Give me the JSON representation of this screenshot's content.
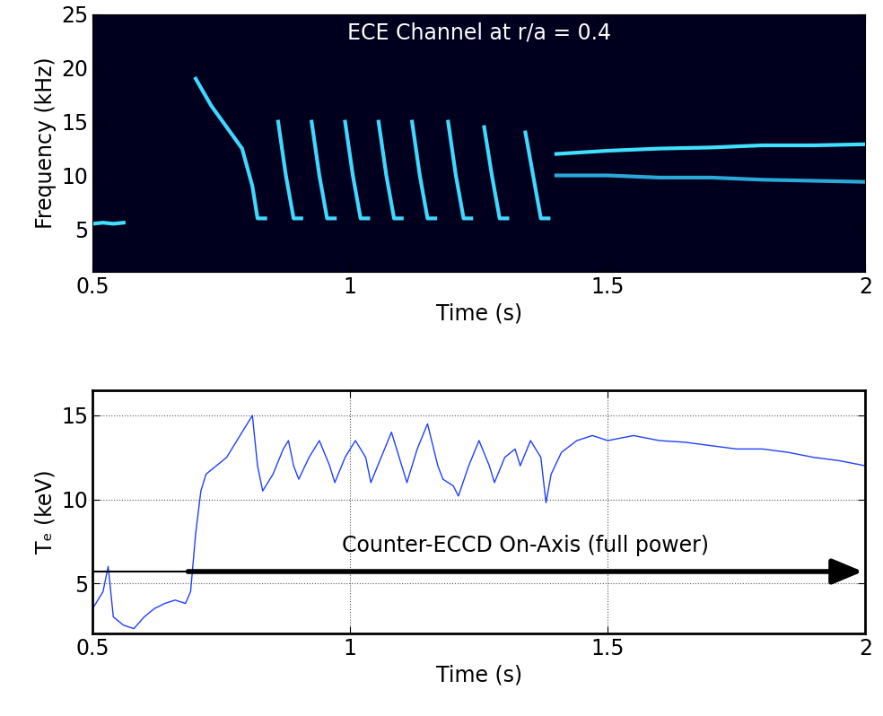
{
  "chart_data": [
    {
      "type": "line",
      "annotations": [
        {
          "text": "ECE Channel at r/a = 0.4"
        }
      ],
      "x_label": "Time (s)",
      "y_label": "Frequency (kHz)",
      "xlim": [
        0.5,
        2
      ],
      "xticks": [
        0.5,
        1,
        1.5,
        2
      ],
      "ylim": [
        1,
        25
      ],
      "yticks": [
        5,
        10,
        15,
        20,
        25
      ],
      "grid": false,
      "series": [
        {
          "color": "#40e0ff",
          "x": [
            0.5,
            0.52,
            0.54,
            0.56
          ],
          "values": [
            5.5,
            5.6,
            5.5,
            5.6
          ]
        },
        {
          "color": "#40d8ff",
          "x": [
            0.7,
            0.73,
            0.76,
            0.79,
            0.81,
            0.82,
            0.835,
            0.84,
            0.86,
            0.875,
            0.89,
            0.905,
            0.91,
            0.925,
            0.94,
            0.955,
            0.97,
            0.975,
            0.99,
            1.005,
            1.02,
            1.035,
            1.04,
            1.055,
            1.07,
            1.085,
            1.1,
            1.105,
            1.12,
            1.135,
            1.15,
            1.165,
            1.17,
            1.19,
            1.205,
            1.22,
            1.235,
            1.24,
            1.26,
            1.275,
            1.29,
            1.305,
            1.31,
            1.34,
            1.355,
            1.37,
            1.385
          ],
          "values": [
            19,
            16.5,
            14.5,
            12.5,
            9,
            6,
            6,
            null,
            15,
            10,
            6,
            6,
            null,
            15,
            10,
            6,
            6,
            null,
            15,
            10,
            6,
            6,
            null,
            15,
            10,
            6,
            6,
            null,
            15,
            10,
            6,
            6,
            null,
            15,
            10,
            6,
            6,
            null,
            14.5,
            10,
            6,
            6,
            null,
            14,
            10,
            6,
            6
          ]
        },
        {
          "color": "#40e0ff",
          "x": [
            1.4,
            1.5,
            1.6,
            1.7,
            1.8,
            1.9,
            2.0
          ],
          "values": [
            12.0,
            12.3,
            12.5,
            12.6,
            12.8,
            12.8,
            12.9
          ]
        },
        {
          "color": "#2aa8d8",
          "x": [
            1.4,
            1.5,
            1.6,
            1.7,
            1.8,
            1.9,
            2.0
          ],
          "values": [
            10.0,
            10.0,
            9.8,
            9.8,
            9.6,
            9.5,
            9.4
          ]
        }
      ]
    },
    {
      "type": "line",
      "annotations": [
        {
          "text": "Counter-ECCD On-Axis (full power)",
          "arrow": {
            "x": [
              0.68,
              2.0
            ],
            "y": 5.7
          }
        }
      ],
      "x_label": "Time (s)",
      "y_label": "Tₑ (keV)",
      "xlim": [
        0.5,
        2
      ],
      "xticks": [
        0.5,
        1,
        1.5,
        2
      ],
      "ylim": [
        2,
        16.5
      ],
      "yticks": [
        5,
        10,
        15
      ],
      "grid": true,
      "series": [
        {
          "color": "#1f3fff",
          "x": [
            0.5,
            0.52,
            0.53,
            0.54,
            0.56,
            0.58,
            0.6,
            0.62,
            0.64,
            0.66,
            0.68,
            0.69,
            0.7,
            0.71,
            0.72,
            0.74,
            0.76,
            0.78,
            0.8,
            0.81,
            0.82,
            0.83,
            0.85,
            0.87,
            0.88,
            0.89,
            0.9,
            0.92,
            0.94,
            0.96,
            0.97,
            0.99,
            1.01,
            1.03,
            1.04,
            1.06,
            1.08,
            1.1,
            1.11,
            1.13,
            1.15,
            1.17,
            1.18,
            1.2,
            1.21,
            1.23,
            1.25,
            1.27,
            1.28,
            1.3,
            1.32,
            1.33,
            1.35,
            1.37,
            1.38,
            1.39,
            1.41,
            1.44,
            1.47,
            1.5,
            1.55,
            1.6,
            1.65,
            1.7,
            1.75,
            1.8,
            1.85,
            1.9,
            1.95,
            2.0
          ],
          "values": [
            3.5,
            4.5,
            6.0,
            3.0,
            2.5,
            2.3,
            3.0,
            3.5,
            3.8,
            4.0,
            3.8,
            4.5,
            8.0,
            10.5,
            11.5,
            12.0,
            12.5,
            13.5,
            14.5,
            15.0,
            12.0,
            10.5,
            11.5,
            13.0,
            13.5,
            12.0,
            11.2,
            12.5,
            13.5,
            12.0,
            11.0,
            12.5,
            13.5,
            12.5,
            11.0,
            12.5,
            14.0,
            12.0,
            11.0,
            13.0,
            14.5,
            12.0,
            11.2,
            10.8,
            10.2,
            12.0,
            13.5,
            12.0,
            11.0,
            12.5,
            13.0,
            12.0,
            13.5,
            12.5,
            9.8,
            11.5,
            12.8,
            13.5,
            13.8,
            13.5,
            13.8,
            13.5,
            13.4,
            13.2,
            13.0,
            13.0,
            12.8,
            12.5,
            12.3,
            12.0
          ]
        }
      ]
    }
  ]
}
